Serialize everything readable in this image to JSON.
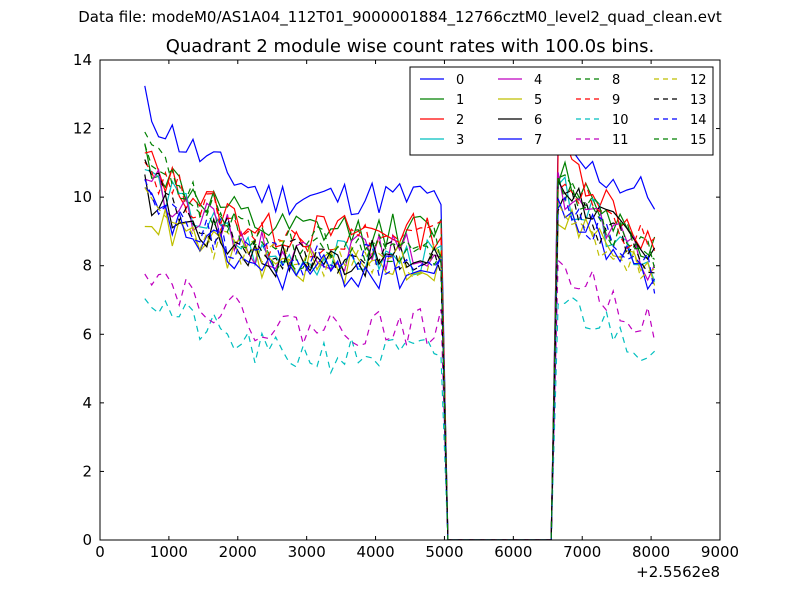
{
  "header": {
    "supertitle": "Data file: modeM0/AS1A04_112T01_9000001884_12766cztM0_level2_quad_clean.evt"
  },
  "chart_data": {
    "type": "line",
    "title": "Quadrant 2 module wise count rates with 100.0s bins.",
    "xlabel": "",
    "ylabel": "",
    "x_offset_label": "+2.5562e8",
    "xlim": [
      0,
      9000
    ],
    "ylim": [
      0,
      14
    ],
    "x_ticks": [
      0,
      1000,
      2000,
      3000,
      4000,
      5000,
      6000,
      7000,
      8000,
      9000
    ],
    "y_ticks": [
      0,
      2,
      4,
      6,
      8,
      10,
      12,
      14
    ],
    "grid": false,
    "legend_position": "top-right",
    "legend_columns": 4,
    "gap": [
      5100,
      6500
    ],
    "series": [
      {
        "name": "0",
        "color": "#0000ff",
        "dash": "solid",
        "start": 12.8,
        "plateau": 10.0,
        "resume": 11.2,
        "end": 10.0
      },
      {
        "name": "1",
        "color": "#008000",
        "dash": "solid",
        "start": 11.3,
        "plateau": 9.0,
        "resume": 10.8,
        "end": 8.5
      },
      {
        "name": "2",
        "color": "#ff0000",
        "dash": "solid",
        "start": 11.2,
        "plateau": 9.0,
        "resume": 11.4,
        "end": 8.5
      },
      {
        "name": "3",
        "color": "#00bfbf",
        "dash": "solid",
        "start": 10.9,
        "plateau": 8.2,
        "resume": 10.2,
        "end": 8.0
      },
      {
        "name": "4",
        "color": "#bf00bf",
        "dash": "solid",
        "start": 10.8,
        "plateau": 8.4,
        "resume": 10.3,
        "end": 7.8
      },
      {
        "name": "5",
        "color": "#bfbf00",
        "dash": "solid",
        "start": 9.6,
        "plateau": 8.0,
        "resume": 9.6,
        "end": 7.6
      },
      {
        "name": "6",
        "color": "#000000",
        "dash": "solid",
        "start": 10.2,
        "plateau": 8.2,
        "resume": 10.6,
        "end": 8.0
      },
      {
        "name": "7",
        "color": "#0000ff",
        "dash": "solid",
        "start": 10.0,
        "plateau": 7.8,
        "resume": 9.8,
        "end": 7.5
      },
      {
        "name": "8",
        "color": "#008000",
        "dash": "dashed",
        "start": 11.8,
        "plateau": 8.4,
        "resume": 10.2,
        "end": 8.2
      },
      {
        "name": "9",
        "color": "#ff0000",
        "dash": "dashed",
        "start": 11.1,
        "plateau": 8.8,
        "resume": 10.6,
        "end": 8.4
      },
      {
        "name": "10",
        "color": "#00bfbf",
        "dash": "dashed",
        "start": 7.3,
        "plateau": 5.4,
        "resume": 7.0,
        "end": 5.5
      },
      {
        "name": "11",
        "color": "#bf00bf",
        "dash": "dashed",
        "start": 8.2,
        "plateau": 6.2,
        "resume": 8.0,
        "end": 6.2
      },
      {
        "name": "12",
        "color": "#bfbf00",
        "dash": "dashed",
        "start": 9.8,
        "plateau": 8.2,
        "resume": 9.4,
        "end": 7.6
      },
      {
        "name": "13",
        "color": "#000000",
        "dash": "dashed",
        "start": 10.8,
        "plateau": 8.3,
        "resume": 10.0,
        "end": 7.9
      },
      {
        "name": "14",
        "color": "#0000ff",
        "dash": "dashed",
        "start": 10.4,
        "plateau": 8.2,
        "resume": 9.8,
        "end": 7.7
      },
      {
        "name": "15",
        "color": "#008000",
        "dash": "dashed",
        "start": 11.6,
        "plateau": 8.6,
        "resume": 10.4,
        "end": 8.0
      }
    ]
  }
}
